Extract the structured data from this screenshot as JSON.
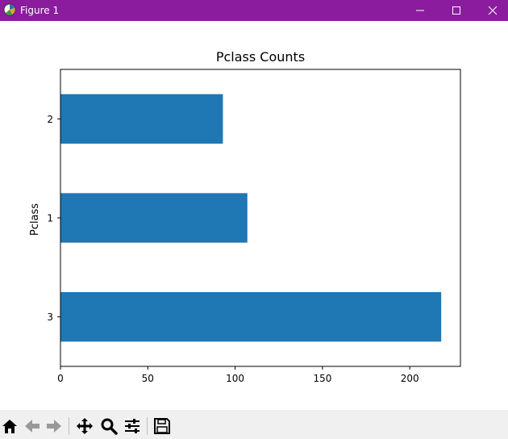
{
  "window": {
    "title": "Figure 1"
  },
  "toolbar": {
    "tools": [
      "home-icon",
      "back-arrow-icon",
      "forward-arrow-icon",
      "pan-icon",
      "zoom-icon",
      "configure-subplots-icon",
      "save-icon"
    ]
  },
  "colors": {
    "titlebar": "#8b1c9e",
    "bar": "#1f77b4",
    "toolbar_bg": "#f0f0f0"
  },
  "chart_data": {
    "type": "bar",
    "orientation": "horizontal",
    "title": "Pclass Counts",
    "xlabel": "",
    "ylabel": "Pclass",
    "categories": [
      "3",
      "1",
      "2"
    ],
    "values": [
      218,
      107,
      93
    ],
    "xlim": [
      0,
      229
    ],
    "xticks": [
      0,
      50,
      100,
      150,
      200
    ],
    "xtick_labels": [
      "0",
      "50",
      "100",
      "150",
      "200"
    ],
    "grid": false,
    "legend": "none"
  }
}
